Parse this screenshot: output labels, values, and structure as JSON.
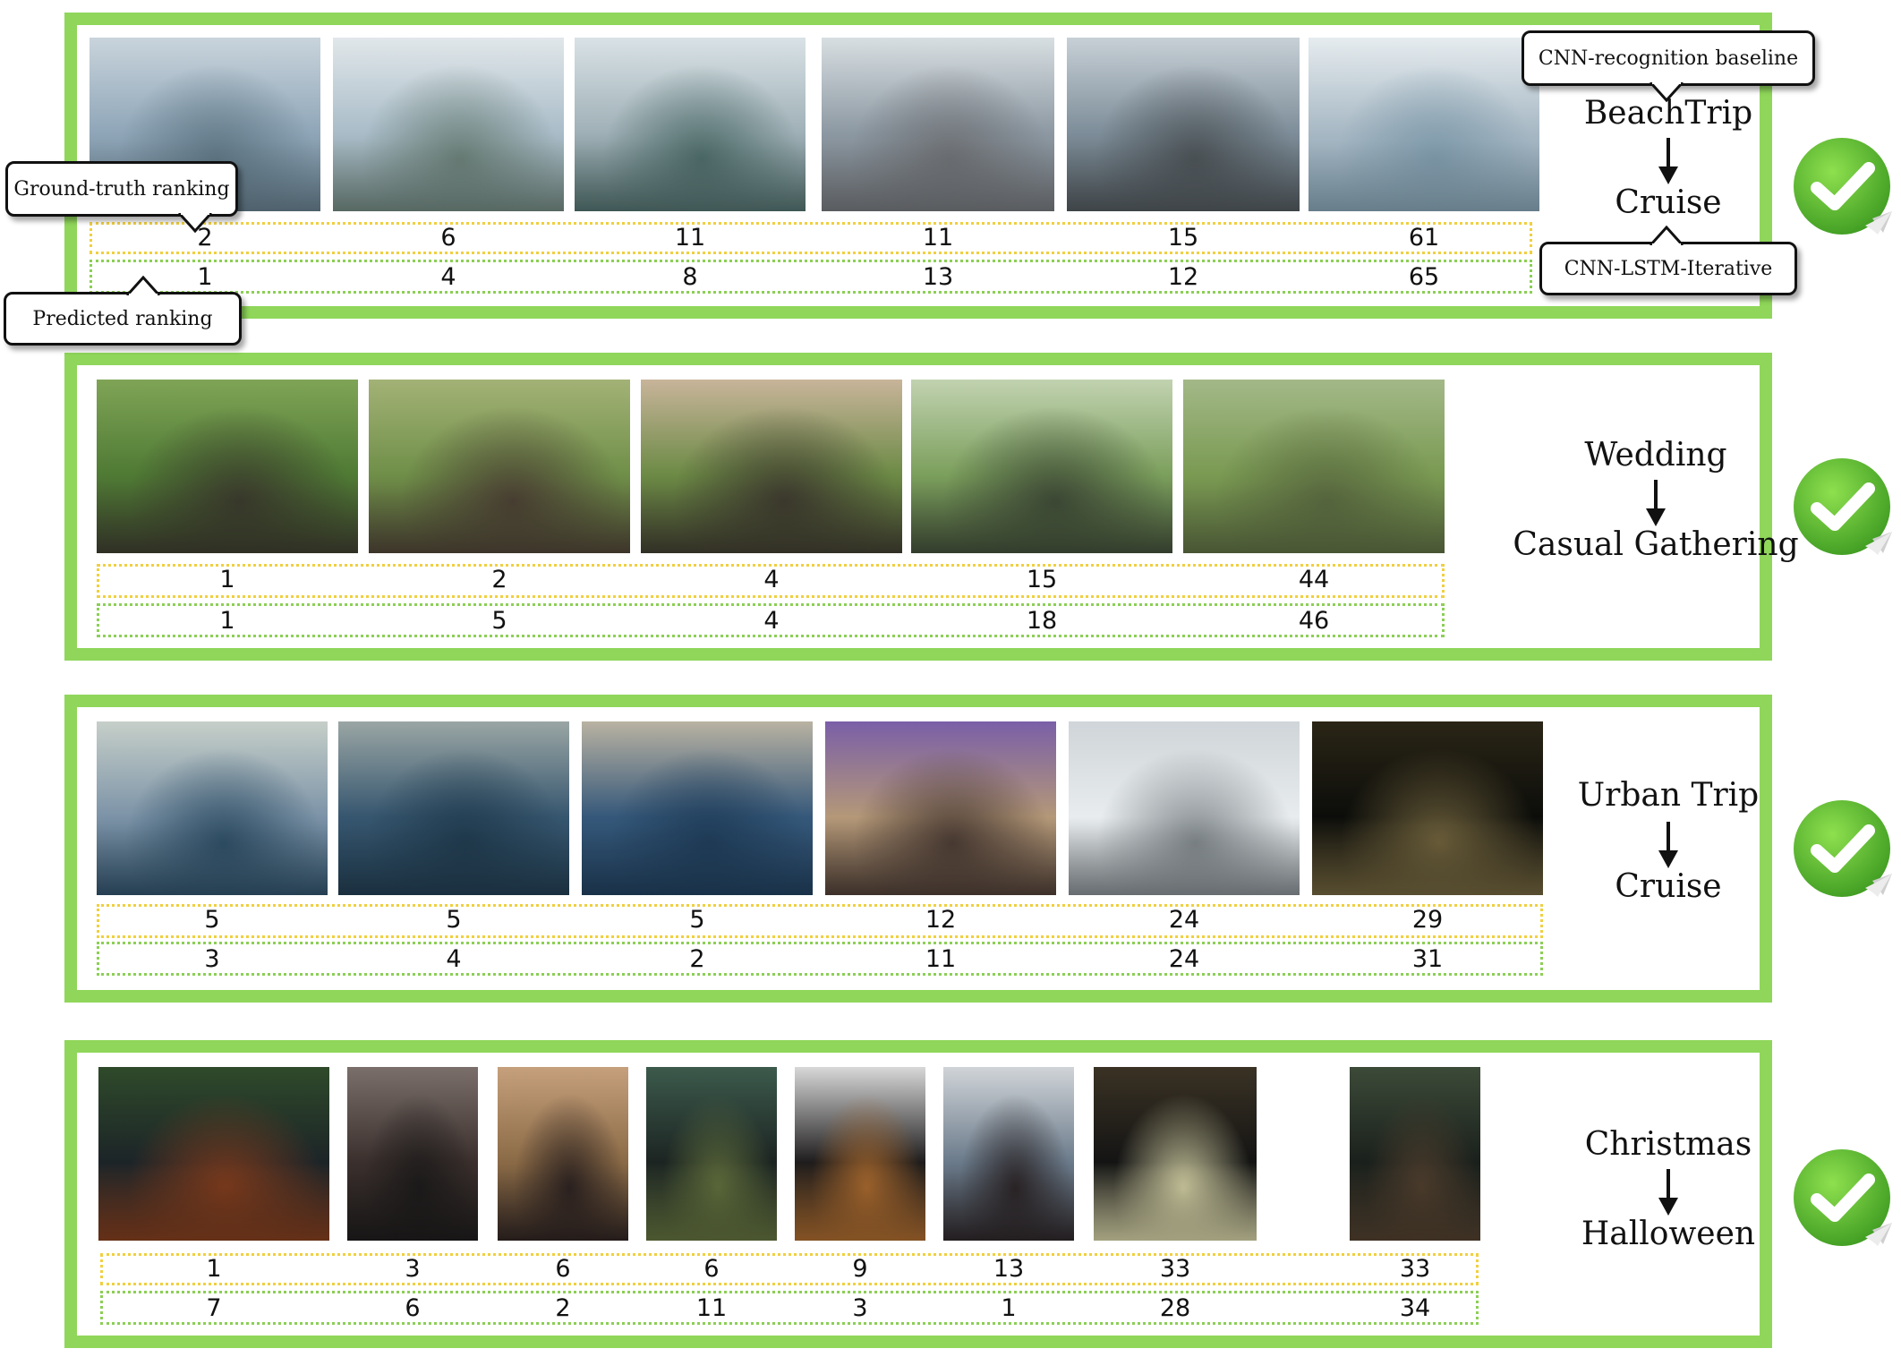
{
  "callouts": {
    "ground_truth": "Ground-truth ranking",
    "predicted": "Predicted ranking",
    "baseline": "CNN-recognition baseline",
    "ours": "CNN-LSTM-Iterative"
  },
  "albums": [
    {
      "baseline_label": "BeachTrip",
      "predicted_label": "Cruise",
      "ground_truth_ranks": [
        "2",
        "6",
        "11",
        "11",
        "15",
        "61"
      ],
      "predicted_ranks": [
        "1",
        "4",
        "8",
        "13",
        "12",
        "65"
      ]
    },
    {
      "baseline_label": "Wedding",
      "predicted_label": "Casual Gathering",
      "ground_truth_ranks": [
        "1",
        "2",
        "4",
        "15",
        "44"
      ],
      "predicted_ranks": [
        "1",
        "5",
        "4",
        "18",
        "46"
      ]
    },
    {
      "baseline_label": "Urban Trip",
      "predicted_label": "Cruise",
      "ground_truth_ranks": [
        "5",
        "5",
        "5",
        "12",
        "24",
        "29"
      ],
      "predicted_ranks": [
        "3",
        "4",
        "2",
        "11",
        "24",
        "31"
      ]
    },
    {
      "baseline_label": "Christmas",
      "predicted_label": "Halloween",
      "ground_truth_ranks": [
        "1",
        "3",
        "6",
        "6",
        "9",
        "13",
        "33",
        "33"
      ],
      "predicted_ranks": [
        "7",
        "6",
        "2",
        "11",
        "3",
        "1",
        "28",
        "34"
      ]
    }
  ],
  "colors": {
    "panel_border": "#8fd65a",
    "ground_truth_box": "#f0d040",
    "predicted_box": "#8ccf55",
    "check_green": "#5cc02e"
  }
}
